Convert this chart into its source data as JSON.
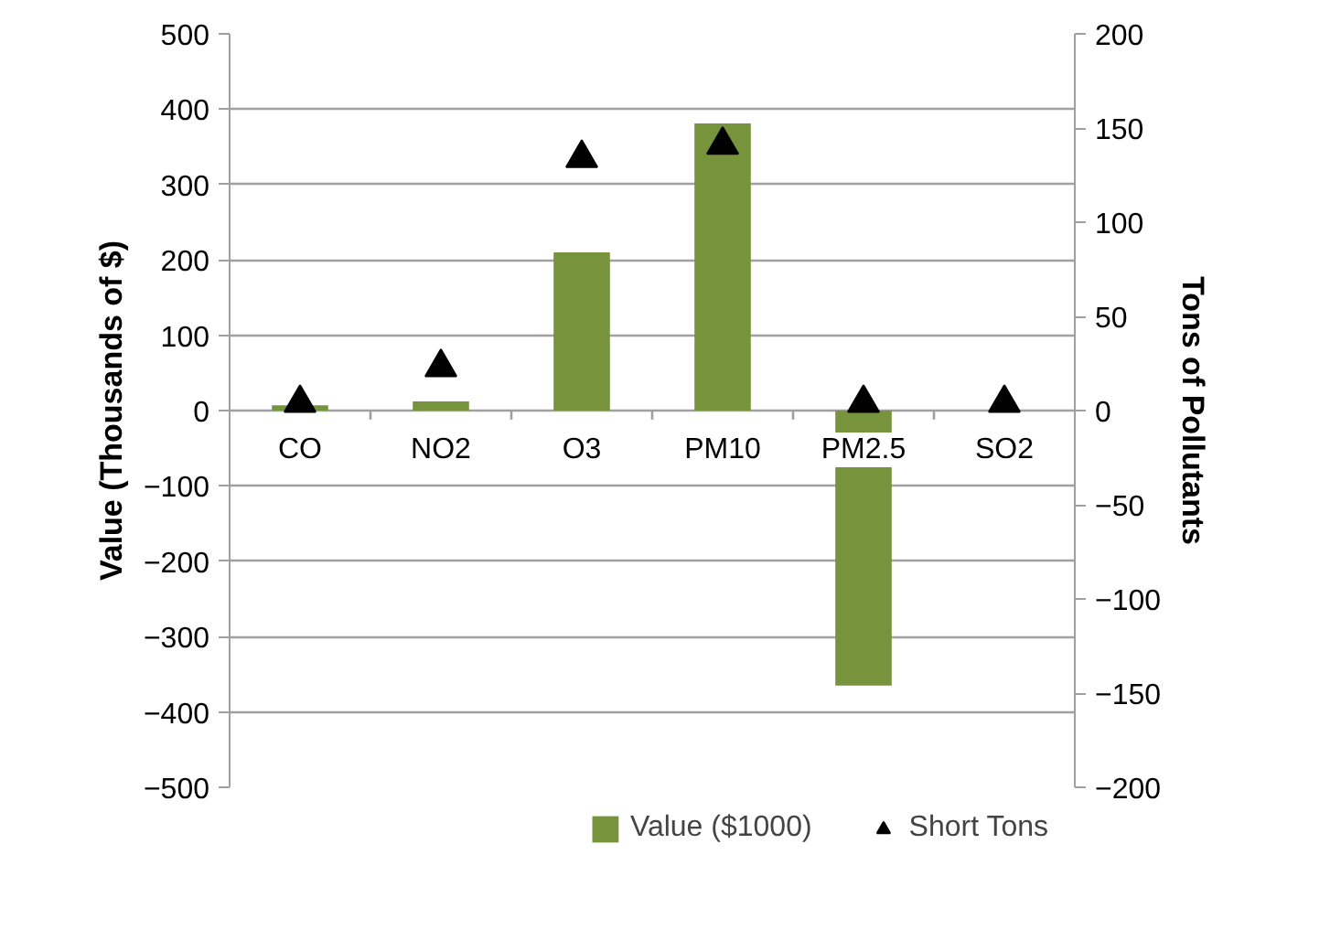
{
  "chart_data": {
    "type": "bar",
    "categories": [
      "CO",
      "NO2",
      "O3",
      "PM10",
      "PM2.5",
      "SO2"
    ],
    "series": [
      {
        "name": "Value ($1000)",
        "color": "#77933c",
        "values": [
          7,
          12,
          210,
          381,
          -365,
          0
        ]
      },
      {
        "name": "Short Tons",
        "type": "scatter",
        "axis": "y2",
        "marker": "triangle",
        "color": "#000000",
        "values": [
          4,
          23,
          134,
          141,
          4,
          4
        ]
      }
    ],
    "ylabel": "Value (Thousands of $)",
    "y2label": "Tons of Pollutants",
    "ylim": [
      -500,
      500
    ],
    "yticks": [
      -500,
      -400,
      -300,
      -200,
      -100,
      0,
      100,
      200,
      300,
      400,
      500
    ],
    "y2lim": [
      -200,
      200
    ],
    "y2ticks": [
      -200,
      -150,
      -100,
      -50,
      0,
      50,
      100,
      150,
      200
    ],
    "grid": "y",
    "legend": "bottom"
  }
}
